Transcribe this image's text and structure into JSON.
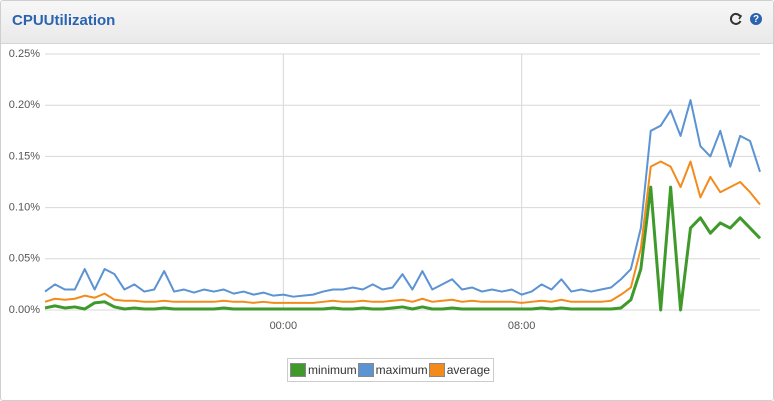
{
  "chart_data": {
    "type": "line",
    "title": "CPUUtilization",
    "x": [
      -480,
      -460,
      -440,
      -420,
      -400,
      -380,
      -360,
      -340,
      -320,
      -300,
      -280,
      -260,
      -240,
      -220,
      -200,
      -180,
      -160,
      -140,
      -120,
      -100,
      -80,
      -60,
      -40,
      -20,
      0,
      20,
      40,
      60,
      80,
      100,
      120,
      140,
      160,
      180,
      200,
      220,
      240,
      260,
      280,
      300,
      320,
      340,
      360,
      380,
      400,
      420,
      440,
      460,
      480,
      500,
      520,
      540,
      560,
      580,
      600,
      620,
      640,
      660,
      680,
      700,
      720,
      740,
      760,
      780,
      800,
      820,
      840,
      860,
      880,
      900,
      920,
      940,
      960
    ],
    "xlim": [
      -480,
      960
    ],
    "xticks": [
      {
        "value": 0,
        "label": "00:00"
      },
      {
        "value": 480,
        "label": "08:00"
      }
    ],
    "ylim": [
      0,
      0.25
    ],
    "yticks": [
      {
        "value": 0,
        "label": "0.00%"
      },
      {
        "value": 0.05,
        "label": "0.05%"
      },
      {
        "value": 0.1,
        "label": "0.10%"
      },
      {
        "value": 0.15,
        "label": "0.15%"
      },
      {
        "value": 0.2,
        "label": "0.20%"
      },
      {
        "value": 0.25,
        "label": "0.25%"
      }
    ],
    "grid": true,
    "legend": "bottom",
    "series": [
      {
        "name": "minimum",
        "color": "#3f9a2b",
        "values": [
          0.002,
          0.004,
          0.002,
          0.003,
          0.001,
          0.007,
          0.008,
          0.003,
          0.001,
          0.002,
          0.001,
          0.001,
          0.002,
          0.001,
          0.001,
          0.001,
          0.001,
          0.001,
          0.002,
          0.001,
          0.001,
          0.001,
          0.001,
          0.001,
          0.001,
          0.001,
          0.001,
          0.001,
          0.001,
          0.002,
          0.001,
          0.001,
          0.002,
          0.001,
          0.001,
          0.002,
          0.003,
          0.001,
          0.003,
          0.001,
          0.001,
          0.002,
          0.001,
          0.001,
          0.001,
          0.001,
          0.001,
          0.001,
          0.001,
          0.001,
          0.002,
          0.001,
          0.002,
          0.001,
          0.001,
          0.001,
          0.001,
          0.001,
          0.002,
          0.01,
          0.04,
          0.12,
          0,
          0.12,
          0,
          0.08,
          0.09,
          0.075,
          0.085,
          0.08,
          0.09,
          0.08,
          0.07
        ]
      },
      {
        "name": "maximum",
        "color": "#5b93d3",
        "values": [
          0.018,
          0.025,
          0.02,
          0.02,
          0.04,
          0.02,
          0.04,
          0.035,
          0.02,
          0.025,
          0.018,
          0.02,
          0.038,
          0.018,
          0.02,
          0.017,
          0.02,
          0.018,
          0.02,
          0.016,
          0.018,
          0.015,
          0.017,
          0.014,
          0.015,
          0.013,
          0.014,
          0.015,
          0.018,
          0.02,
          0.02,
          0.022,
          0.02,
          0.025,
          0.02,
          0.022,
          0.035,
          0.02,
          0.038,
          0.02,
          0.025,
          0.03,
          0.02,
          0.022,
          0.018,
          0.02,
          0.018,
          0.02,
          0.015,
          0.018,
          0.025,
          0.02,
          0.03,
          0.018,
          0.02,
          0.018,
          0.02,
          0.022,
          0.03,
          0.04,
          0.08,
          0.175,
          0.18,
          0.195,
          0.17,
          0.205,
          0.16,
          0.15,
          0.175,
          0.14,
          0.17,
          0.165,
          0.135
        ]
      },
      {
        "name": "average",
        "color": "#f38b1c",
        "values": [
          0.008,
          0.011,
          0.01,
          0.011,
          0.014,
          0.012,
          0.016,
          0.01,
          0.009,
          0.009,
          0.008,
          0.008,
          0.009,
          0.008,
          0.008,
          0.008,
          0.008,
          0.008,
          0.009,
          0.008,
          0.008,
          0.007,
          0.008,
          0.007,
          0.007,
          0.007,
          0.007,
          0.007,
          0.008,
          0.009,
          0.008,
          0.008,
          0.009,
          0.008,
          0.008,
          0.009,
          0.01,
          0.008,
          0.011,
          0.008,
          0.009,
          0.01,
          0.008,
          0.009,
          0.008,
          0.008,
          0.008,
          0.008,
          0.007,
          0.008,
          0.009,
          0.008,
          0.01,
          0.008,
          0.008,
          0.008,
          0.008,
          0.009,
          0.015,
          0.022,
          0.06,
          0.14,
          0.145,
          0.14,
          0.12,
          0.145,
          0.11,
          0.13,
          0.115,
          0.12,
          0.125,
          0.115,
          0.103
        ]
      }
    ]
  }
}
